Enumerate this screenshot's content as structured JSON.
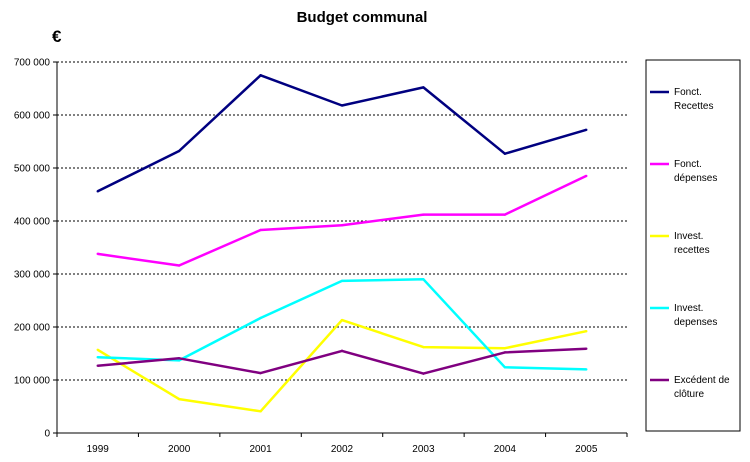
{
  "chart_data": {
    "type": "line",
    "title": "Budget communal",
    "ylabel": "€",
    "xlabel": "",
    "categories": [
      "1999",
      "2000",
      "2001",
      "2002",
      "2003",
      "2004",
      "2005"
    ],
    "ylim": [
      0,
      700000
    ],
    "yticks": [
      0,
      100000,
      200000,
      300000,
      400000,
      500000,
      600000,
      700000
    ],
    "ytick_labels": [
      "0",
      "100 000",
      "200 000",
      "300 000",
      "400 000",
      "500 000",
      "600 000",
      "700 000"
    ],
    "grid": "horizontal dotted",
    "legend_position": "right",
    "series": [
      {
        "name": "Fonct. Recettes",
        "legend_lines": [
          "Fonct.",
          "Recettes"
        ],
        "color": "#000080",
        "values": [
          456000,
          532000,
          675000,
          618000,
          652000,
          527000,
          572000
        ]
      },
      {
        "name": "Fonct. dépenses",
        "legend_lines": [
          "Fonct.",
          "dépenses"
        ],
        "color": "#ff00ff",
        "values": [
          338000,
          316000,
          383000,
          392000,
          412000,
          412000,
          485000
        ]
      },
      {
        "name": "Invest. recettes",
        "legend_lines": [
          "Invest.",
          "recettes"
        ],
        "color": "#ffff00",
        "values": [
          157000,
          64000,
          41000,
          213000,
          162000,
          160000,
          192000
        ]
      },
      {
        "name": "Invest. depenses",
        "legend_lines": [
          "Invest.",
          "depenses"
        ],
        "color": "#00ffff",
        "values": [
          143000,
          137000,
          217000,
          287000,
          290000,
          124000,
          120000
        ]
      },
      {
        "name": "Excédent de clôture",
        "legend_lines": [
          "Excédent  de",
          "clôture"
        ],
        "color": "#800080",
        "values": [
          127000,
          141000,
          113000,
          155000,
          112000,
          152000,
          159000
        ]
      }
    ]
  }
}
